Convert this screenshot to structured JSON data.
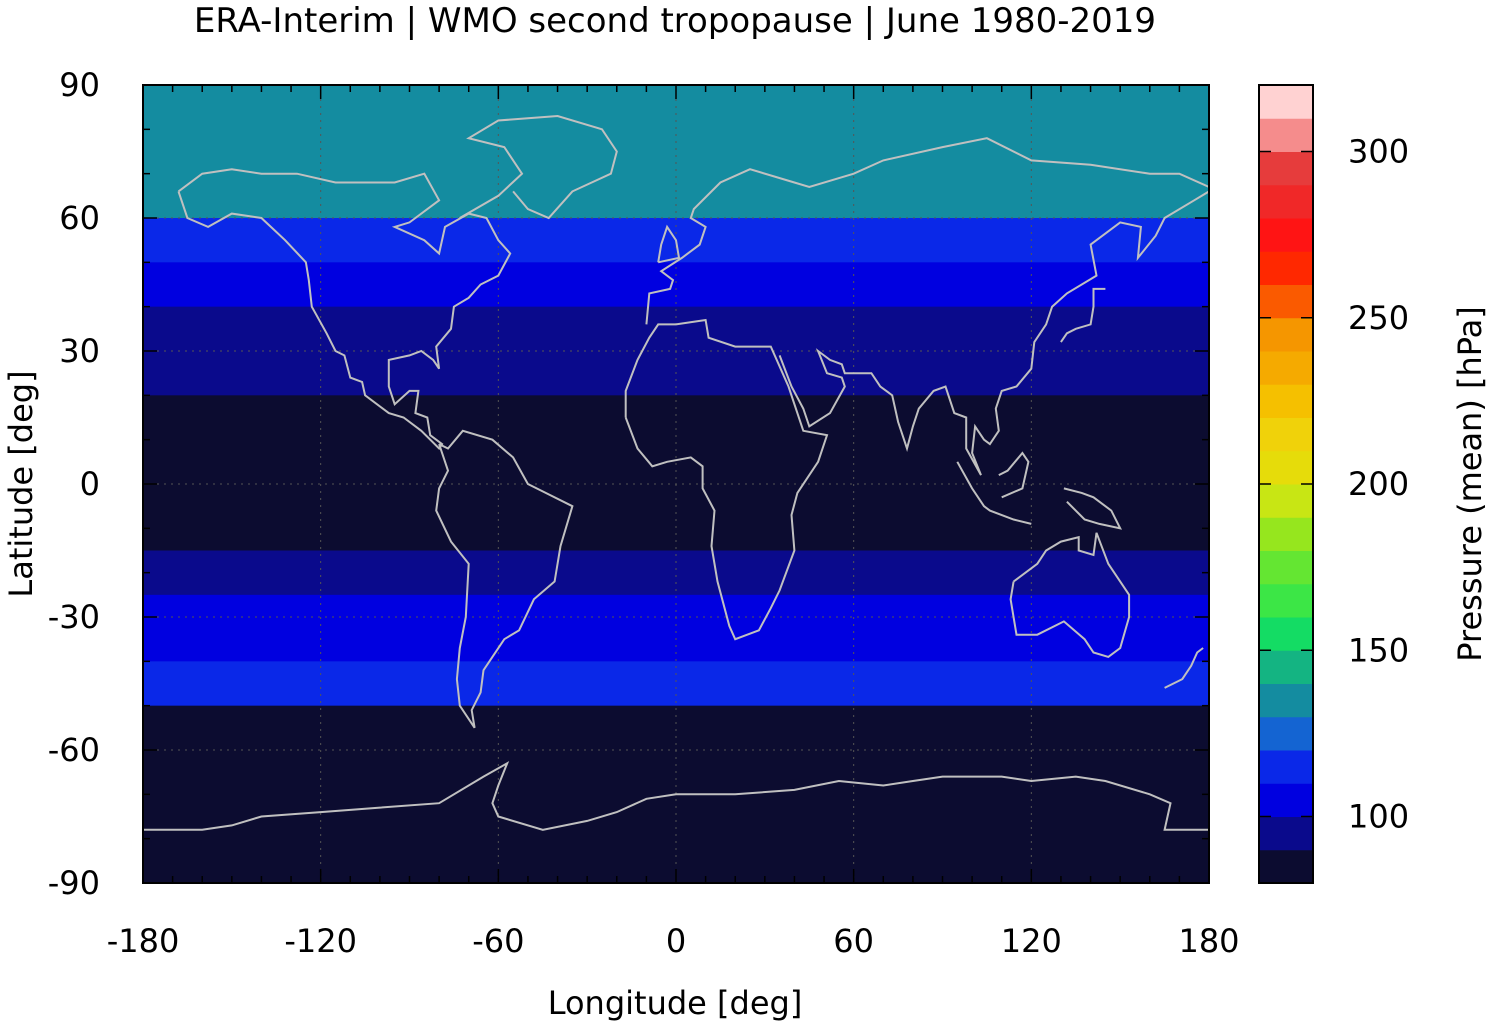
{
  "chart_data": {
    "type": "heatmap",
    "title": "ERA-Interim | WMO second tropopause | June 1980-2019",
    "xlabel": "Longitude [deg]",
    "ylabel": "Latitude [deg]",
    "xlim": [
      -180,
      180
    ],
    "ylim": [
      -90,
      90
    ],
    "xticks": [
      {
        "value": -180,
        "label": "-180"
      },
      {
        "value": -120,
        "label": "-120"
      },
      {
        "value": -60,
        "label": "-60"
      },
      {
        "value": 0,
        "label": "0"
      },
      {
        "value": 60,
        "label": "60"
      },
      {
        "value": 120,
        "label": "120"
      },
      {
        "value": 180,
        "label": "180"
      }
    ],
    "yticks": [
      {
        "value": 90,
        "label": "90"
      },
      {
        "value": 60,
        "label": "60"
      },
      {
        "value": 30,
        "label": "30"
      },
      {
        "value": 0,
        "label": "0"
      },
      {
        "value": -30,
        "label": "-30"
      },
      {
        "value": -60,
        "label": "-60"
      },
      {
        "value": -90,
        "label": "-90"
      }
    ],
    "grid": "dotted at 60 deg longitude / 30 deg latitude intervals",
    "colorbar": {
      "label": "Pressure (mean) [hPa]",
      "range": [
        80,
        320
      ],
      "ticks": [
        {
          "value": 100,
          "label": "100"
        },
        {
          "value": 150,
          "label": "150"
        },
        {
          "value": 200,
          "label": "200"
        },
        {
          "value": 250,
          "label": "250"
        },
        {
          "value": 300,
          "label": "300"
        }
      ],
      "bins": [
        {
          "from": 80,
          "to": 90,
          "color": "#0c0c30"
        },
        {
          "from": 90,
          "to": 100,
          "color": "#0a0a8c"
        },
        {
          "from": 100,
          "to": 110,
          "color": "#0000e0"
        },
        {
          "from": 110,
          "to": 120,
          "color": "#0a28e8"
        },
        {
          "from": 120,
          "to": 130,
          "color": "#1464d2"
        },
        {
          "from": 130,
          "to": 140,
          "color": "#148ca0"
        },
        {
          "from": 140,
          "to": 150,
          "color": "#14b482"
        },
        {
          "from": 150,
          "to": 160,
          "color": "#14dc64"
        },
        {
          "from": 160,
          "to": 170,
          "color": "#3ce646"
        },
        {
          "from": 170,
          "to": 180,
          "color": "#64e632"
        },
        {
          "from": 180,
          "to": 190,
          "color": "#96e61e"
        },
        {
          "from": 190,
          "to": 200,
          "color": "#c8e614"
        },
        {
          "from": 200,
          "to": 210,
          "color": "#e6dc0a"
        },
        {
          "from": 210,
          "to": 220,
          "color": "#f0d20a"
        },
        {
          "from": 220,
          "to": 230,
          "color": "#f5c000"
        },
        {
          "from": 230,
          "to": 240,
          "color": "#f5aa00"
        },
        {
          "from": 240,
          "to": 250,
          "color": "#f59600"
        },
        {
          "from": 250,
          "to": 260,
          "color": "#fa5a00"
        },
        {
          "from": 260,
          "to": 270,
          "color": "#ff2800"
        },
        {
          "from": 270,
          "to": 280,
          "color": "#ff1414"
        },
        {
          "from": 280,
          "to": 290,
          "color": "#f02828"
        },
        {
          "from": 290,
          "to": 300,
          "color": "#e63c3c"
        },
        {
          "from": 300,
          "to": 310,
          "color": "#f58c8c"
        },
        {
          "from": 310,
          "to": 320,
          "color": "#ffd2d2"
        }
      ]
    },
    "zonal_bands": [
      {
        "lat_from": 85,
        "lat_to": 90,
        "mean_hPa": 135
      },
      {
        "lat_from": 75,
        "lat_to": 85,
        "mean_hPa": 135
      },
      {
        "lat_from": 60,
        "lat_to": 75,
        "mean_hPa": 130
      },
      {
        "lat_from": 50,
        "lat_to": 60,
        "mean_hPa": 115
      },
      {
        "lat_from": 40,
        "lat_to": 50,
        "mean_hPa": 105
      },
      {
        "lat_from": 30,
        "lat_to": 40,
        "mean_hPa": 95
      },
      {
        "lat_from": 20,
        "lat_to": 30,
        "mean_hPa": 95
      },
      {
        "lat_from": -15,
        "lat_to": 20,
        "mean_hPa": 85
      },
      {
        "lat_from": -25,
        "lat_to": -15,
        "mean_hPa": 95
      },
      {
        "lat_from": -40,
        "lat_to": -25,
        "mean_hPa": 105
      },
      {
        "lat_from": -50,
        "lat_to": -40,
        "mean_hPa": 110
      },
      {
        "lat_from": -90,
        "lat_to": -50,
        "mean_hPa": 85
      }
    ],
    "colors": {
      "coastline": "#c0c0c0",
      "frame": "#000000"
    }
  }
}
